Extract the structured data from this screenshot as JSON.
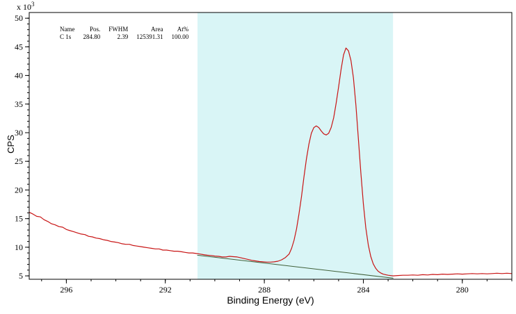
{
  "chart_data": {
    "type": "line",
    "xlabel": "Binding Energy (eV)",
    "ylabel": "CPS",
    "x_axis": {
      "left_value": 297.5,
      "right_value": 278,
      "reversed": true,
      "major_ticks": [
        296,
        292,
        288,
        284,
        280
      ],
      "minor_step": 1
    },
    "y_axis": {
      "min": 4.4,
      "max": 51,
      "major_ticks": [
        5,
        10,
        15,
        20,
        25,
        30,
        35,
        40,
        45,
        50
      ],
      "minor_step": 1,
      "multiplier_text": "x 10",
      "multiplier_exponent": "3"
    },
    "highlight_region": {
      "x_start": 290.7,
      "x_end": 282.8,
      "color": "#d9f5f6"
    },
    "series": [
      {
        "id": "spectrum-line",
        "name": "C 1s spectrum",
        "color": "#c81414",
        "width": 1.2,
        "points": [
          [
            297.5,
            16.1
          ],
          [
            297.35,
            15.8
          ],
          [
            297.2,
            15.4
          ],
          [
            297.05,
            15.3
          ],
          [
            296.9,
            14.8
          ],
          [
            296.75,
            14.5
          ],
          [
            296.6,
            14.1
          ],
          [
            296.45,
            13.9
          ],
          [
            296.3,
            13.6
          ],
          [
            296.15,
            13.5
          ],
          [
            296.0,
            13.1
          ],
          [
            295.85,
            12.9
          ],
          [
            295.7,
            12.7
          ],
          [
            295.55,
            12.5
          ],
          [
            295.4,
            12.3
          ],
          [
            295.25,
            12.2
          ],
          [
            295.1,
            11.9
          ],
          [
            294.95,
            11.8
          ],
          [
            294.8,
            11.6
          ],
          [
            294.65,
            11.5
          ],
          [
            294.5,
            11.3
          ],
          [
            294.35,
            11.2
          ],
          [
            294.2,
            11.0
          ],
          [
            294.05,
            10.9
          ],
          [
            293.9,
            10.8
          ],
          [
            293.75,
            10.6
          ],
          [
            293.6,
            10.5
          ],
          [
            293.45,
            10.5
          ],
          [
            293.3,
            10.3
          ],
          [
            293.15,
            10.2
          ],
          [
            293.0,
            10.1
          ],
          [
            292.85,
            10.0
          ],
          [
            292.7,
            9.9
          ],
          [
            292.55,
            9.8
          ],
          [
            292.4,
            9.7
          ],
          [
            292.25,
            9.7
          ],
          [
            292.1,
            9.5
          ],
          [
            291.95,
            9.5
          ],
          [
            291.8,
            9.4
          ],
          [
            291.65,
            9.3
          ],
          [
            291.5,
            9.3
          ],
          [
            291.35,
            9.2
          ],
          [
            291.2,
            9.1
          ],
          [
            291.05,
            9.0
          ],
          [
            290.9,
            9.0
          ],
          [
            290.75,
            8.9
          ],
          [
            290.6,
            8.8
          ],
          [
            290.45,
            8.7
          ],
          [
            290.3,
            8.6
          ],
          [
            290.15,
            8.55
          ],
          [
            290.0,
            8.45
          ],
          [
            289.85,
            8.4
          ],
          [
            289.7,
            8.3
          ],
          [
            289.55,
            8.3
          ],
          [
            289.4,
            8.4
          ],
          [
            289.25,
            8.35
          ],
          [
            289.1,
            8.3
          ],
          [
            288.95,
            8.15
          ],
          [
            288.8,
            8.0
          ],
          [
            288.65,
            7.85
          ],
          [
            288.5,
            7.7
          ],
          [
            288.35,
            7.6
          ],
          [
            288.2,
            7.5
          ],
          [
            288.05,
            7.45
          ],
          [
            287.9,
            7.4
          ],
          [
            287.75,
            7.4
          ],
          [
            287.6,
            7.45
          ],
          [
            287.45,
            7.55
          ],
          [
            287.3,
            7.8
          ],
          [
            287.15,
            8.2
          ],
          [
            287.0,
            8.8
          ],
          [
            286.9,
            9.8
          ],
          [
            286.8,
            11.2
          ],
          [
            286.7,
            13.2
          ],
          [
            286.6,
            15.8
          ],
          [
            286.5,
            18.8
          ],
          [
            286.4,
            22.2
          ],
          [
            286.3,
            25.4
          ],
          [
            286.2,
            28.0
          ],
          [
            286.1,
            29.9
          ],
          [
            286.0,
            30.9
          ],
          [
            285.9,
            31.2
          ],
          [
            285.8,
            30.9
          ],
          [
            285.7,
            30.3
          ],
          [
            285.6,
            29.8
          ],
          [
            285.5,
            29.6
          ],
          [
            285.4,
            29.9
          ],
          [
            285.3,
            30.9
          ],
          [
            285.2,
            32.6
          ],
          [
            285.1,
            35.1
          ],
          [
            285.0,
            38.0
          ],
          [
            284.9,
            41.0
          ],
          [
            284.8,
            43.6
          ],
          [
            284.7,
            44.8
          ],
          [
            284.6,
            44.3
          ],
          [
            284.5,
            42.6
          ],
          [
            284.4,
            39.6
          ],
          [
            284.3,
            34.8
          ],
          [
            284.2,
            29.0
          ],
          [
            284.1,
            23.0
          ],
          [
            284.0,
            17.6
          ],
          [
            283.9,
            13.4
          ],
          [
            283.8,
            10.4
          ],
          [
            283.7,
            8.4
          ],
          [
            283.6,
            7.1
          ],
          [
            283.5,
            6.3
          ],
          [
            283.4,
            5.8
          ],
          [
            283.3,
            5.5
          ],
          [
            283.2,
            5.3
          ],
          [
            283.1,
            5.2
          ],
          [
            283.0,
            5.1
          ],
          [
            282.8,
            5.0
          ],
          [
            282.6,
            5.05
          ],
          [
            282.4,
            5.1
          ],
          [
            282.2,
            5.1
          ],
          [
            282.0,
            5.15
          ],
          [
            281.8,
            5.1
          ],
          [
            281.6,
            5.2
          ],
          [
            281.4,
            5.15
          ],
          [
            281.2,
            5.25
          ],
          [
            281.0,
            5.2
          ],
          [
            280.8,
            5.3
          ],
          [
            280.6,
            5.25
          ],
          [
            280.4,
            5.3
          ],
          [
            280.2,
            5.35
          ],
          [
            280.0,
            5.3
          ],
          [
            279.8,
            5.35
          ],
          [
            279.6,
            5.4
          ],
          [
            279.4,
            5.35
          ],
          [
            279.2,
            5.4
          ],
          [
            279.0,
            5.35
          ],
          [
            278.8,
            5.4
          ],
          [
            278.6,
            5.45
          ],
          [
            278.4,
            5.4
          ],
          [
            278.2,
            5.45
          ],
          [
            278.0,
            5.4
          ]
        ]
      },
      {
        "id": "background-line",
        "name": "background",
        "color": "#3f5f38",
        "width": 1,
        "points": [
          [
            290.7,
            8.6
          ],
          [
            282.8,
            4.6
          ]
        ]
      }
    ],
    "peak_table": {
      "headers": [
        "Name",
        "Pos.",
        "FWHM",
        "Area",
        "At%"
      ],
      "rows": [
        [
          "C 1s",
          "284.80",
          "2.39",
          "125391.31",
          "100.00"
        ]
      ]
    }
  }
}
